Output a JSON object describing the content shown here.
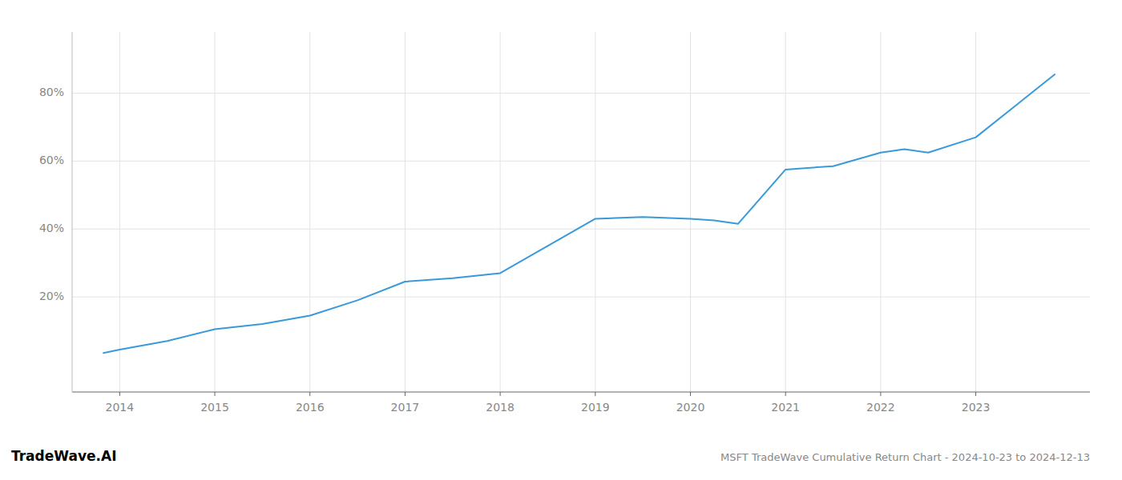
{
  "chart_data": {
    "type": "line",
    "title": "MSFT TradeWave Cumulative Return Chart - 2024-10-23 to 2024-12-13",
    "annotations": [
      "TradeWave.AI"
    ],
    "color": "#3a9ad9",
    "x": [
      2013.83,
      2014.0,
      2014.5,
      2015.0,
      2015.5,
      2016.0,
      2016.5,
      2017.0,
      2017.5,
      2018.0,
      2018.5,
      2019.0,
      2019.5,
      2020.0,
      2020.25,
      2020.5,
      2021.0,
      2021.5,
      2022.0,
      2022.25,
      2022.5,
      2023.0,
      2023.83
    ],
    "values": [
      3.5,
      4.5,
      7.0,
      10.5,
      12.0,
      14.5,
      19.0,
      24.5,
      25.5,
      27.0,
      35.0,
      43.0,
      43.5,
      43.0,
      42.5,
      41.5,
      57.5,
      58.5,
      62.5,
      63.5,
      62.5,
      67.0,
      85.5
    ],
    "xlim": [
      2013.5,
      2024.2
    ],
    "xticks": [
      2014,
      2015,
      2016,
      2017,
      2018,
      2019,
      2020,
      2021,
      2022,
      2023
    ],
    "ylim": [
      -8,
      98
    ],
    "yticks": [
      {
        "value": 20,
        "label": "20%"
      },
      {
        "value": 40,
        "label": "40%"
      },
      {
        "value": 60,
        "label": "60%"
      },
      {
        "value": 80,
        "label": "80%"
      }
    ],
    "grid": true
  }
}
